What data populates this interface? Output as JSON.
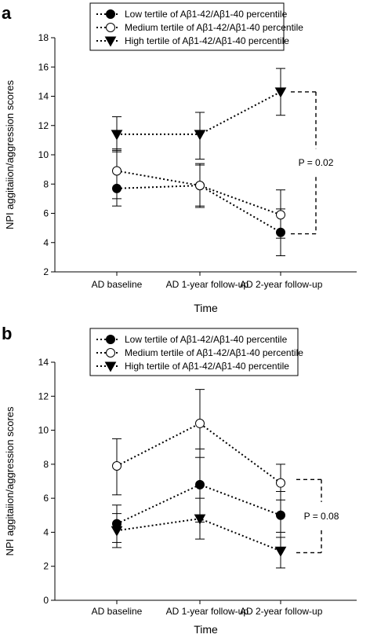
{
  "chart_data": [
    {
      "panel_label": "a",
      "type": "line",
      "categories": [
        "AD baseline",
        "AD 1-year follow-up",
        "AD 2-year follow-up"
      ],
      "ylabel": "NPI aggitaiion/aggression scores",
      "xlabel": "Time",
      "ylim": [
        2,
        18
      ],
      "yticks": [
        2,
        4,
        6,
        8,
        10,
        12,
        14,
        16,
        18
      ],
      "legend_position": "top",
      "series": [
        {
          "name": "Low tertile of Aβ1-42/Aβ1-40 percentile",
          "marker": "filled-circle",
          "values": [
            7.7,
            7.9,
            4.7
          ],
          "err_low": [
            6.5,
            6.5,
            3.1
          ],
          "err_high": [
            10.3,
            9.3,
            6.3
          ]
        },
        {
          "name": "Medium tertile of Aβ1-42/Aβ1-40 percentile",
          "marker": "open-circle",
          "values": [
            8.9,
            7.9,
            5.9
          ],
          "err_low": [
            7.0,
            6.4,
            4.3
          ],
          "err_high": [
            10.4,
            9.4,
            7.6
          ]
        },
        {
          "name": "High tertile of Aβ1-42/Aβ1-40 percentile",
          "marker": "filled-triangle-down",
          "values": [
            11.4,
            11.4,
            14.3
          ],
          "err_low": [
            10.2,
            9.7,
            12.7
          ],
          "err_high": [
            12.6,
            12.9,
            15.9
          ]
        }
      ],
      "annotation": {
        "text": "P = 0.02",
        "top_value": 14.3,
        "bottom_value": 4.6
      }
    },
    {
      "panel_label": "b",
      "type": "line",
      "categories": [
        "AD baseline",
        "AD 1-year follow-up",
        "AD 2-year follow-up"
      ],
      "ylabel": "NPI aggitaiion/aggression scores",
      "xlabel": "Time",
      "ylim": [
        0,
        14
      ],
      "yticks": [
        0,
        2,
        4,
        6,
        8,
        10,
        12,
        14
      ],
      "legend_position": "top",
      "series": [
        {
          "name": "Low tertile of Aβ1-42/Aβ1-40 percentile",
          "marker": "filled-circle",
          "values": [
            4.5,
            6.8,
            5.0
          ],
          "err_low": [
            3.4,
            4.6,
            3.7
          ],
          "err_high": [
            5.6,
            8.9,
            6.4
          ]
        },
        {
          "name": "Medium tertile of Aβ1-42/Aβ1-40 percentile",
          "marker": "open-circle",
          "values": [
            7.9,
            10.4,
            6.9
          ],
          "err_low": [
            6.2,
            8.4,
            5.9
          ],
          "err_high": [
            9.5,
            12.4,
            8.0
          ]
        },
        {
          "name": "High tertile of Aβ1-42/Aβ1-40 percentile",
          "marker": "filled-triangle-down",
          "values": [
            4.1,
            4.8,
            2.9
          ],
          "err_low": [
            3.1,
            3.6,
            1.9
          ],
          "err_high": [
            5.1,
            6.0,
            4.0
          ]
        }
      ],
      "annotation": {
        "text": "P = 0.08",
        "top_value": 7.1,
        "bottom_value": 2.8
      }
    }
  ]
}
